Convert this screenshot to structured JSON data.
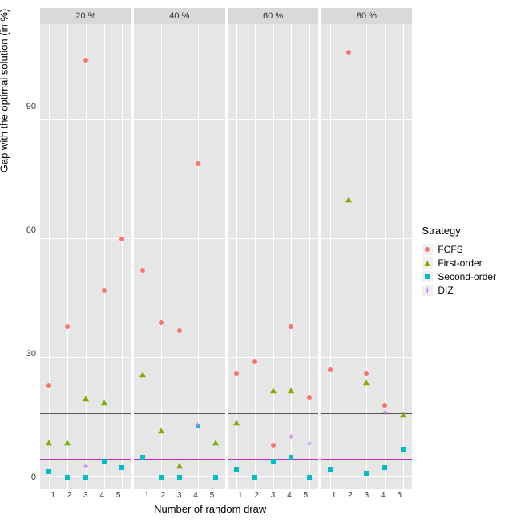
{
  "chart": {
    "type": "faceted-scatter",
    "ylabel": "Gap with the optimal solution (in %)",
    "xlabel": "Number of random draw",
    "ylim": [
      -3,
      114
    ],
    "yticks": [
      0,
      30,
      60,
      90
    ],
    "xvals": [
      1,
      2,
      3,
      4,
      5
    ],
    "panel_bg": "#e6e6e6",
    "strip_bg": "#d9d9d9",
    "grid_color": "#ffffff",
    "ytick_fontsize": 11,
    "xtick_fontsize": 10,
    "label_fontsize": 13,
    "legend": {
      "title": "Strategy",
      "items": [
        {
          "key": "FCFS",
          "shape": "circle",
          "color": "#f8766d"
        },
        {
          "key": "First-order",
          "shape": "triangle",
          "color": "#7cae00"
        },
        {
          "key": "Second-order",
          "shape": "square",
          "color": "#00bfc4"
        },
        {
          "key": "DIZ",
          "shape": "plus",
          "color": "#c77cff"
        }
      ]
    },
    "hlines": [
      {
        "y": 40,
        "color": "#d97b4a"
      },
      {
        "y": 16,
        "color": "#555555"
      },
      {
        "y": 4.5,
        "color": "#c02bc0"
      },
      {
        "y": 3.2,
        "color": "#2b6fc0"
      }
    ],
    "facets": [
      {
        "label": "20 %",
        "points": [
          {
            "x": 1,
            "y": 23,
            "s": "FCFS"
          },
          {
            "x": 2,
            "y": 38,
            "s": "FCFS"
          },
          {
            "x": 3,
            "y": 105,
            "s": "FCFS"
          },
          {
            "x": 4,
            "y": 47,
            "s": "FCFS"
          },
          {
            "x": 5,
            "y": 60,
            "s": "FCFS"
          },
          {
            "x": 1,
            "y": 9,
            "s": "First-order"
          },
          {
            "x": 2,
            "y": 9,
            "s": "First-order"
          },
          {
            "x": 3,
            "y": 20,
            "s": "First-order"
          },
          {
            "x": 4,
            "y": 19,
            "s": "First-order"
          },
          {
            "x": 1,
            "y": 1.5,
            "s": "Second-order"
          },
          {
            "x": 2,
            "y": 0,
            "s": "Second-order"
          },
          {
            "x": 3,
            "y": 0,
            "s": "Second-order"
          },
          {
            "x": 4,
            "y": 4,
            "s": "Second-order"
          },
          {
            "x": 5,
            "y": 2.5,
            "s": "Second-order"
          },
          {
            "x": 3,
            "y": 2.5,
            "s": "DIZ"
          }
        ]
      },
      {
        "label": "40 %",
        "points": [
          {
            "x": 1,
            "y": 52,
            "s": "FCFS"
          },
          {
            "x": 2,
            "y": 39,
            "s": "FCFS"
          },
          {
            "x": 3,
            "y": 37,
            "s": "FCFS"
          },
          {
            "x": 4,
            "y": 79,
            "s": "FCFS"
          },
          {
            "x": 1,
            "y": 26,
            "s": "First-order"
          },
          {
            "x": 2,
            "y": 12,
            "s": "First-order"
          },
          {
            "x": 3,
            "y": 3,
            "s": "First-order"
          },
          {
            "x": 5,
            "y": 9,
            "s": "First-order"
          },
          {
            "x": 1,
            "y": 5,
            "s": "Second-order"
          },
          {
            "x": 2,
            "y": 0,
            "s": "Second-order"
          },
          {
            "x": 3,
            "y": 0,
            "s": "Second-order"
          },
          {
            "x": 4,
            "y": 13,
            "s": "Second-order"
          },
          {
            "x": 5,
            "y": 0,
            "s": "Second-order"
          },
          {
            "x": 4,
            "y": 13,
            "s": "DIZ"
          }
        ]
      },
      {
        "label": "60 %",
        "points": [
          {
            "x": 1,
            "y": 26,
            "s": "FCFS"
          },
          {
            "x": 2,
            "y": 29,
            "s": "FCFS"
          },
          {
            "x": 3,
            "y": 8,
            "s": "FCFS"
          },
          {
            "x": 4,
            "y": 38,
            "s": "FCFS"
          },
          {
            "x": 5,
            "y": 20,
            "s": "FCFS"
          },
          {
            "x": 1,
            "y": 14,
            "s": "First-order"
          },
          {
            "x": 3,
            "y": 22,
            "s": "First-order"
          },
          {
            "x": 4,
            "y": 22,
            "s": "First-order"
          },
          {
            "x": 1,
            "y": 2,
            "s": "Second-order"
          },
          {
            "x": 2,
            "y": 0,
            "s": "Second-order"
          },
          {
            "x": 3,
            "y": 4,
            "s": "Second-order"
          },
          {
            "x": 4,
            "y": 5,
            "s": "Second-order"
          },
          {
            "x": 5,
            "y": 0,
            "s": "Second-order"
          },
          {
            "x": 4,
            "y": 10,
            "s": "DIZ"
          },
          {
            "x": 5,
            "y": 8,
            "s": "DIZ"
          }
        ]
      },
      {
        "label": "80 %",
        "points": [
          {
            "x": 1,
            "y": 27,
            "s": "FCFS"
          },
          {
            "x": 2,
            "y": 107,
            "s": "FCFS"
          },
          {
            "x": 3,
            "y": 26,
            "s": "FCFS"
          },
          {
            "x": 4,
            "y": 18,
            "s": "FCFS"
          },
          {
            "x": 2,
            "y": 70,
            "s": "First-order"
          },
          {
            "x": 3,
            "y": 24,
            "s": "First-order"
          },
          {
            "x": 5,
            "y": 16,
            "s": "First-order"
          },
          {
            "x": 1,
            "y": 2,
            "s": "Second-order"
          },
          {
            "x": 3,
            "y": 1,
            "s": "Second-order"
          },
          {
            "x": 4,
            "y": 2.5,
            "s": "Second-order"
          },
          {
            "x": 5,
            "y": 7,
            "s": "Second-order"
          },
          {
            "x": 4,
            "y": 16,
            "s": "DIZ"
          }
        ]
      }
    ]
  }
}
